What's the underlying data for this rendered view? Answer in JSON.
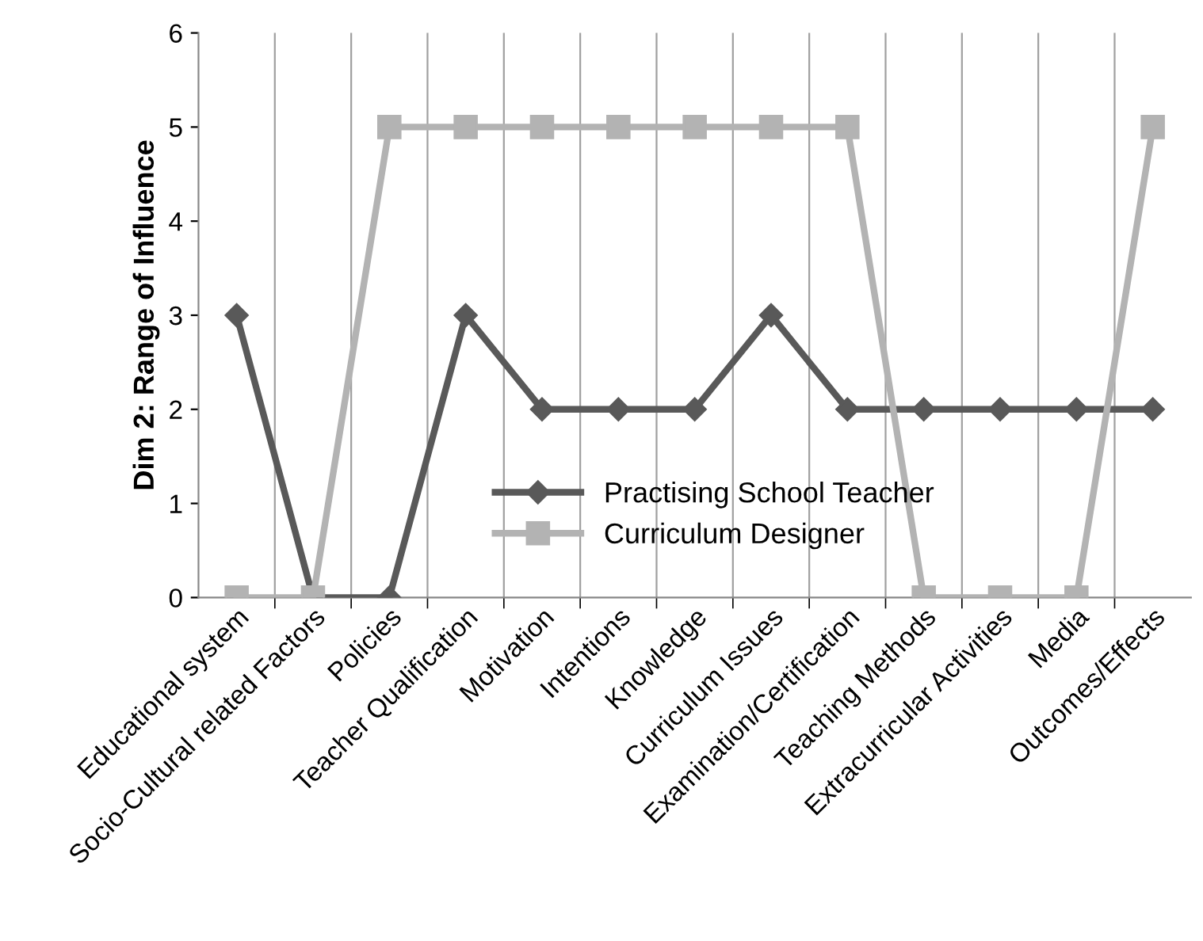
{
  "chart_data": {
    "type": "line",
    "ylabel": "Dim 2: Range of Influence",
    "categories": [
      "Educational system",
      "Socio-Cultural related Factors",
      "Policies",
      "Teacher Qualification",
      "Motivation",
      "Intentions",
      "Knowledge",
      "Curriculum Issues",
      "Examination/Certification",
      "Teaching Methods",
      "Extracurricular Activities",
      "Media",
      "Outcomes/Effects"
    ],
    "series": [
      {
        "name": "Practising School Teacher",
        "color": "#595959",
        "marker": "diamond",
        "values": [
          3,
          0,
          0,
          3,
          2,
          2,
          2,
          3,
          2,
          2,
          2,
          2,
          2
        ]
      },
      {
        "name": "Curriculum Designer",
        "color": "#b3b3b3",
        "marker": "square",
        "values": [
          0,
          0,
          5,
          5,
          5,
          5,
          5,
          5,
          5,
          0,
          0,
          0,
          5
        ]
      }
    ],
    "ylim": [
      0,
      6
    ],
    "yticks": [
      0,
      1,
      2,
      3,
      4,
      5,
      6
    ],
    "grid": "x",
    "legend": "bottom",
    "line_style": "solid"
  }
}
